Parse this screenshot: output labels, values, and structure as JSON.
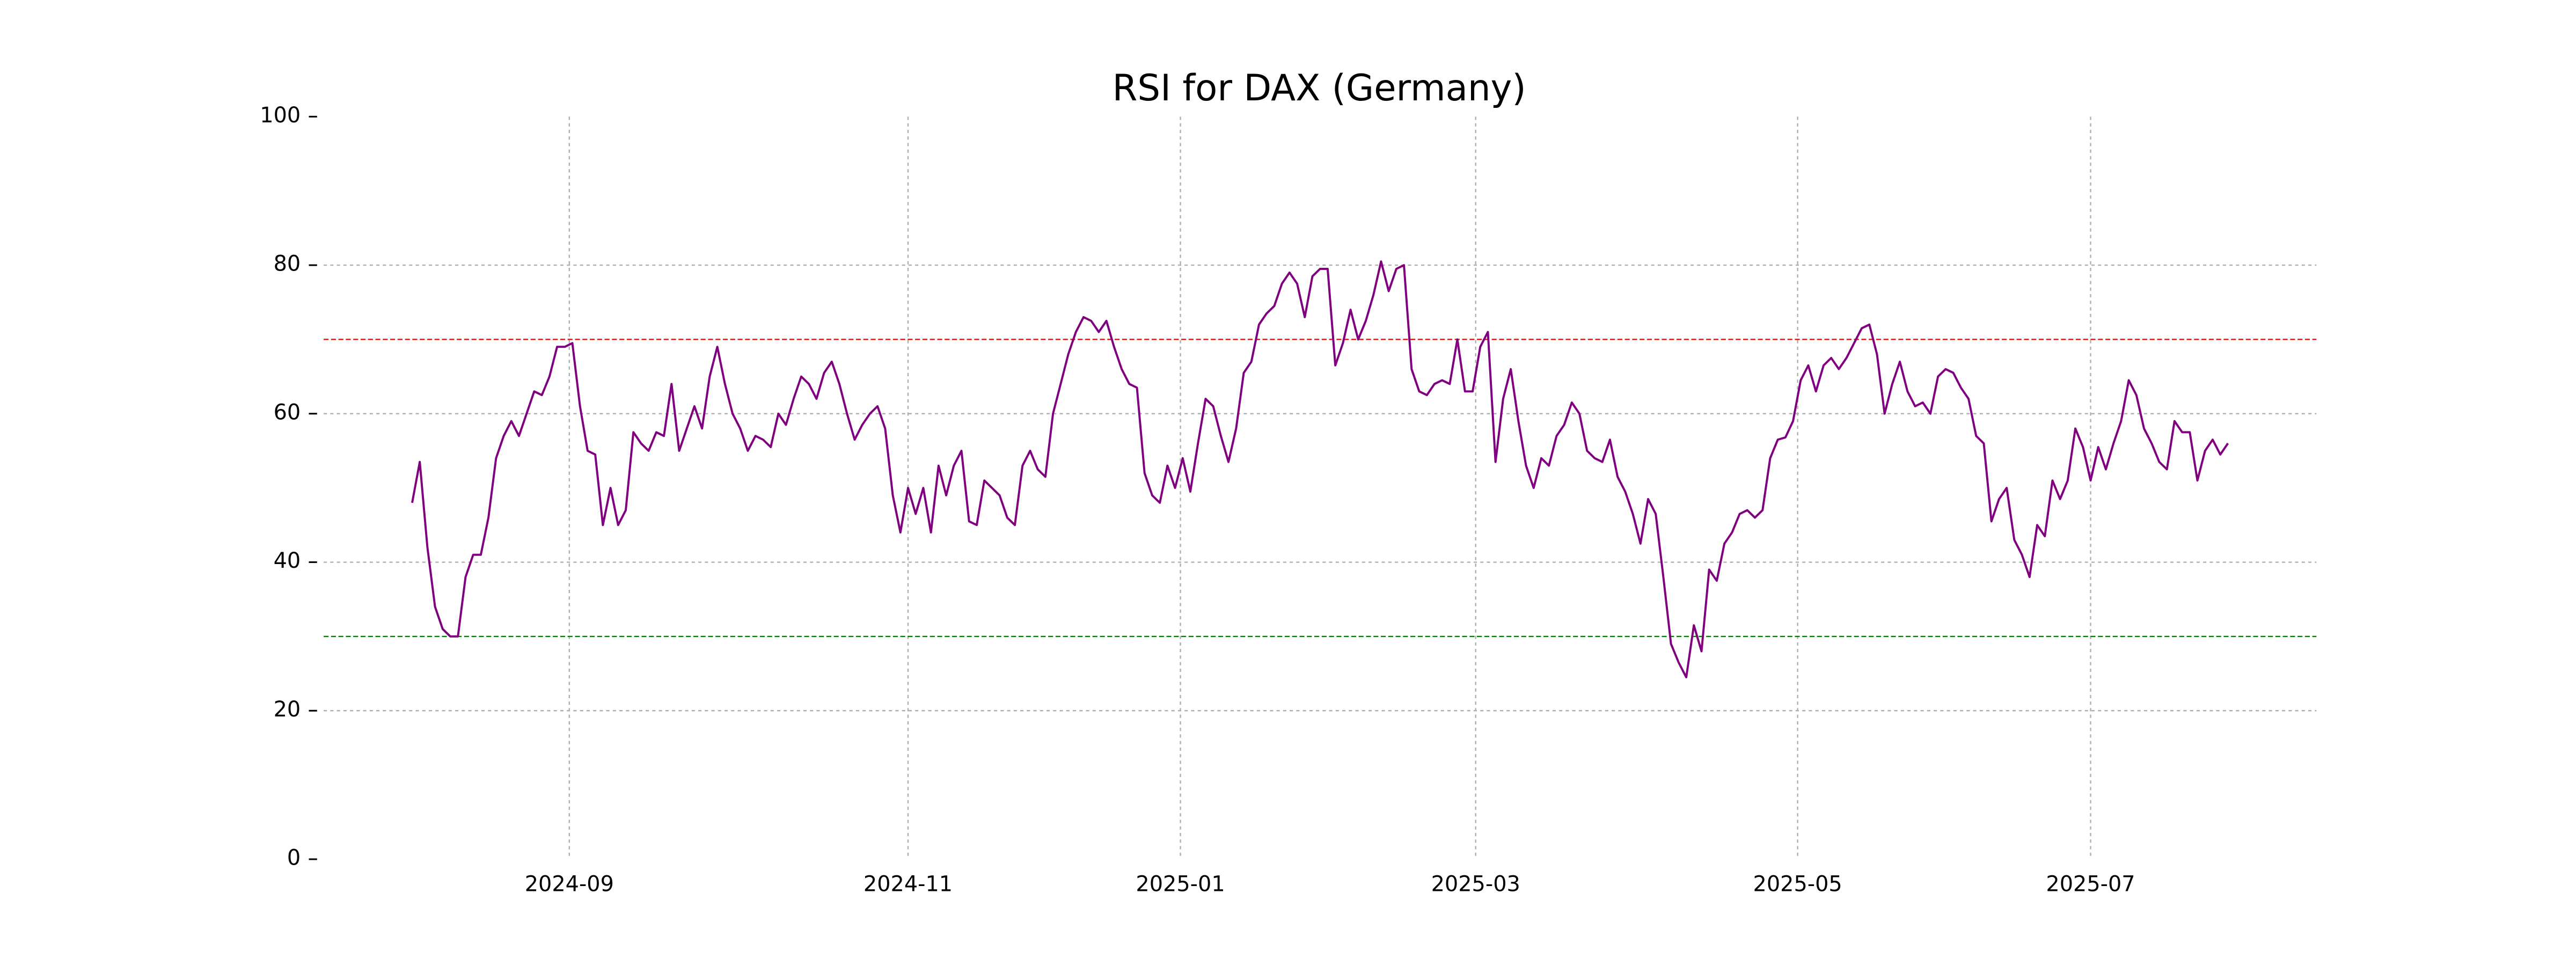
{
  "chart_data": {
    "type": "line",
    "title": "RSI for DAX (Germany)",
    "series": [
      {
        "name": "RSI",
        "color": "#800080",
        "values": [
          48,
          53.5,
          42,
          34,
          31,
          30,
          30,
          38,
          41,
          41,
          46,
          54,
          57,
          59,
          57,
          60,
          63,
          62.5,
          65,
          69,
          69,
          69.5,
          61,
          55,
          54.5,
          45,
          50,
          45,
          47,
          57.5,
          56,
          55,
          57.5,
          57,
          64,
          55,
          58,
          61,
          58,
          65,
          69,
          64,
          60,
          58,
          55,
          57,
          56.5,
          55.5,
          60,
          58.5,
          62,
          65,
          64,
          62,
          65.5,
          67,
          64,
          60,
          56.5,
          58.5,
          60,
          61,
          58,
          49,
          44,
          50,
          46.5,
          50,
          44,
          53,
          49,
          53,
          55,
          45.5,
          45,
          51,
          50,
          49,
          46,
          45,
          53,
          55,
          52.5,
          51.5,
          60,
          64,
          68,
          71,
          73,
          72.5,
          71,
          72.5,
          69,
          66,
          64,
          63.5,
          52,
          49,
          48,
          53,
          50,
          54,
          49.5,
          56,
          62,
          61,
          57,
          53.5,
          58,
          65.5,
          67,
          72,
          73.5,
          74.5,
          77.5,
          79,
          77.5,
          73,
          78.5,
          79.5,
          79.5,
          66.5,
          69.5,
          74,
          70,
          72.5,
          76,
          80.5,
          76.5,
          79.5,
          80,
          66,
          63,
          62.5,
          64,
          64.5,
          64,
          70,
          63,
          63,
          69,
          71,
          53.5,
          62,
          66,
          59,
          53,
          50,
          54,
          53,
          57,
          58.5,
          61.5,
          60,
          55,
          54,
          53.5,
          56.5,
          51.5,
          49.5,
          46.5,
          42.5,
          48.5,
          46.5,
          38,
          29,
          26.5,
          24.5,
          31.5,
          28,
          39,
          37.5,
          42.5,
          44,
          46.5,
          47,
          46,
          47,
          54,
          56.5,
          56.8,
          59,
          64.5,
          66.5,
          63,
          66.5,
          67.5,
          66,
          67.5,
          69.5,
          71.5,
          72,
          68,
          60,
          64,
          67,
          63,
          61,
          61.5,
          60,
          65,
          66,
          65.5,
          63.5,
          62,
          57,
          56,
          45.5,
          48.5,
          50,
          43,
          41,
          38,
          45,
          43.5,
          51,
          48.5,
          51,
          58,
          55.5,
          51,
          55.5,
          52.5,
          56,
          59,
          64.5,
          62.5,
          58,
          56,
          53.5,
          52.5,
          59,
          57.5,
          57.5,
          51,
          55,
          56.5,
          54.5,
          56
        ]
      }
    ],
    "hlines": [
      {
        "value": 70,
        "color": "#ff0000"
      },
      {
        "value": 30,
        "color": "#008000"
      }
    ],
    "xlim": [
      -11.6,
      249.6
    ],
    "xticks": [
      {
        "value": 20.6,
        "label": "2024-09"
      },
      {
        "value": 65,
        "label": "2024-11"
      },
      {
        "value": 100.7,
        "label": "2025-01"
      },
      {
        "value": 139.4,
        "label": "2025-03"
      },
      {
        "value": 181.6,
        "label": "2025-05"
      },
      {
        "value": 220,
        "label": "2025-07"
      }
    ],
    "ylim": [
      0,
      100
    ],
    "yticks": [
      0,
      20,
      40,
      60,
      80,
      100
    ],
    "grid": true
  }
}
